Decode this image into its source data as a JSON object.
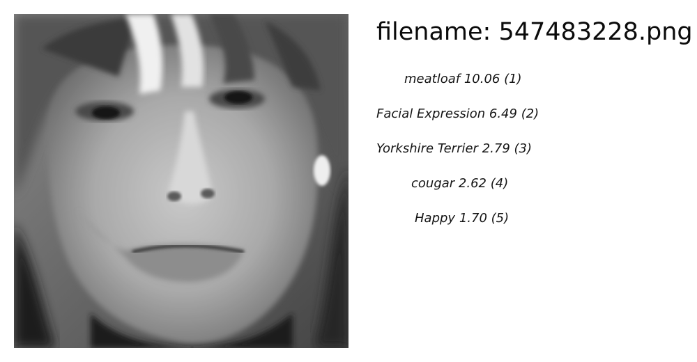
{
  "file": {
    "prefix": "filename: ",
    "name": "547483228.png"
  },
  "predictions": [
    {
      "label": "meatloaf",
      "score_text": "10.06",
      "rank_text": "(1)",
      "score": 10.06,
      "rank": 1
    },
    {
      "label": "Facial Expression",
      "score_text": "6.49",
      "rank_text": "(2)",
      "score": 6.49,
      "rank": 2
    },
    {
      "label": "Yorkshire Terrier",
      "score_text": "2.79",
      "rank_text": "(3)",
      "score": 2.79,
      "rank": 3
    },
    {
      "label": "cougar",
      "score_text": "2.62",
      "rank_text": "(4)",
      "score": 2.62,
      "rank": 4
    },
    {
      "label": "Happy",
      "score_text": "1.70",
      "rank_text": "(5)",
      "score": 1.7,
      "rank": 5
    }
  ],
  "image": {
    "subject": "grayscale face photo"
  }
}
